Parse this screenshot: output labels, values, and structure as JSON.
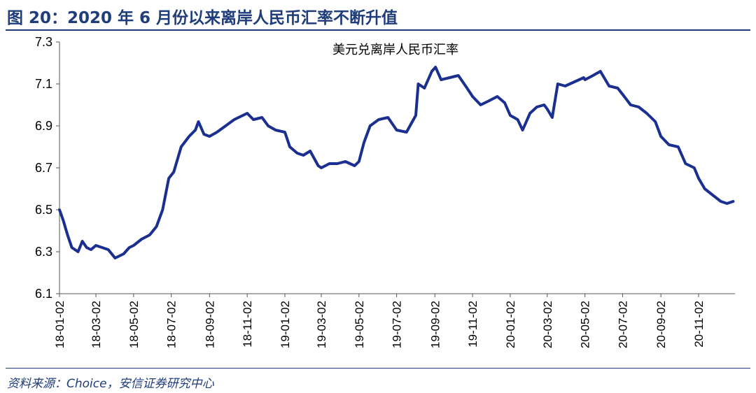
{
  "header": {
    "title": "图 20：2020 年 6 月份以来离岸人民币汇率不断升值"
  },
  "footer": {
    "source": "资料来源：Choice，安信证券研究中心"
  },
  "chart_data": {
    "type": "line",
    "title": "美元兑离岸人民币汇率",
    "xlabel": "",
    "ylabel": "",
    "ylim": [
      6.1,
      7.3
    ],
    "yticks": [
      "6.1",
      "6.3",
      "6.5",
      "6.7",
      "6.9",
      "7.1",
      "7.3"
    ],
    "xticks": [
      "18-01-02",
      "18-03-02",
      "18-05-02",
      "18-07-02",
      "18-09-02",
      "18-11-02",
      "19-01-02",
      "19-03-02",
      "19-05-02",
      "19-07-02",
      "19-09-02",
      "19-11-02",
      "20-01-02",
      "20-03-02",
      "20-05-02",
      "20-07-02",
      "20-09-02",
      "20-11-02"
    ],
    "grid": false,
    "line_color": "#1a2f8f",
    "series": [
      {
        "x": [
          "2018-01-02",
          "2018-01-08",
          "2018-01-15",
          "2018-01-22",
          "2018-02-01",
          "2018-02-08",
          "2018-02-15",
          "2018-02-22",
          "2018-03-02",
          "2018-03-12",
          "2018-03-22",
          "2018-04-02",
          "2018-04-09",
          "2018-04-16",
          "2018-04-25",
          "2018-05-02",
          "2018-05-15",
          "2018-05-28",
          "2018-06-08",
          "2018-06-18",
          "2018-06-28",
          "2018-07-06",
          "2018-07-18",
          "2018-07-31",
          "2018-08-10",
          "2018-08-15",
          "2018-08-24",
          "2018-09-02",
          "2018-09-14",
          "2018-09-28",
          "2018-10-12",
          "2018-10-26",
          "2018-11-02",
          "2018-11-12",
          "2018-11-26",
          "2018-12-06",
          "2018-12-18",
          "2019-01-02",
          "2019-01-10",
          "2019-01-22",
          "2019-02-01",
          "2019-02-12",
          "2019-02-25",
          "2019-03-02",
          "2019-03-15",
          "2019-03-28",
          "2019-04-10",
          "2019-04-25",
          "2019-05-02",
          "2019-05-10",
          "2019-05-20",
          "2019-06-03",
          "2019-06-18",
          "2019-07-02",
          "2019-07-18",
          "2019-08-02",
          "2019-08-06",
          "2019-08-16",
          "2019-08-28",
          "2019-09-03",
          "2019-09-12",
          "2019-09-26",
          "2019-10-10",
          "2019-10-24",
          "2019-11-02",
          "2019-11-15",
          "2019-11-29",
          "2019-12-12",
          "2019-12-24",
          "2020-01-02",
          "2020-01-14",
          "2020-01-22",
          "2020-02-03",
          "2020-02-14",
          "2020-02-26",
          "2020-03-02",
          "2020-03-10",
          "2020-03-19",
          "2020-03-31",
          "2020-04-15",
          "2020-04-30",
          "2020-05-02",
          "2020-05-15",
          "2020-05-27",
          "2020-06-10",
          "2020-06-24",
          "2020-07-02",
          "2020-07-15",
          "2020-07-28",
          "2020-08-10",
          "2020-08-24",
          "2020-09-02",
          "2020-09-15",
          "2020-09-30",
          "2020-10-12",
          "2020-10-26",
          "2020-11-02",
          "2020-11-12",
          "2020-11-25",
          "2020-12-08",
          "2020-12-18",
          "2020-12-28"
        ],
        "y": [
          6.5,
          6.45,
          6.38,
          6.32,
          6.3,
          6.35,
          6.32,
          6.31,
          6.33,
          6.32,
          6.31,
          6.27,
          6.28,
          6.29,
          6.32,
          6.33,
          6.36,
          6.38,
          6.42,
          6.5,
          6.65,
          6.68,
          6.8,
          6.85,
          6.88,
          6.92,
          6.86,
          6.85,
          6.87,
          6.9,
          6.93,
          6.95,
          6.96,
          6.93,
          6.94,
          6.9,
          6.88,
          6.87,
          6.8,
          6.77,
          6.76,
          6.78,
          6.71,
          6.7,
          6.72,
          6.72,
          6.73,
          6.71,
          6.73,
          6.82,
          6.9,
          6.93,
          6.94,
          6.88,
          6.87,
          6.95,
          7.1,
          7.08,
          7.16,
          7.18,
          7.12,
          7.13,
          7.14,
          7.08,
          7.04,
          7.0,
          7.02,
          7.04,
          7.01,
          6.95,
          6.93,
          6.88,
          6.96,
          6.99,
          7.0,
          6.98,
          6.94,
          7.1,
          7.09,
          7.11,
          7.13,
          7.12,
          7.14,
          7.16,
          7.09,
          7.08,
          7.05,
          7.0,
          6.99,
          6.96,
          6.92,
          6.85,
          6.81,
          6.8,
          6.72,
          6.7,
          6.65,
          6.6,
          6.57,
          6.54,
          6.53,
          6.54
        ]
      }
    ]
  }
}
